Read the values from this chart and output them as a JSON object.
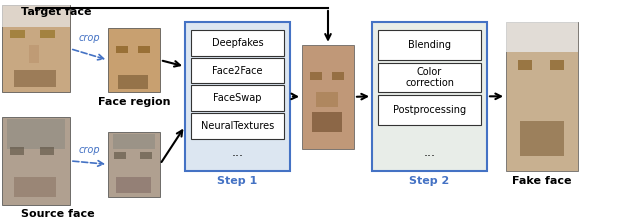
{
  "title": "",
  "background_color": "#ffffff",
  "step1_box": {
    "methods": [
      "Deepfakes",
      "Face2Face",
      "FaceSwap",
      "NeuralTextures"
    ],
    "label": "Step 1",
    "border_color": "#4472c4",
    "fill_color": "#dce6f1"
  },
  "step2_box": {
    "methods": [
      "Blending",
      "Color\ncorrection",
      "Postprocessing"
    ],
    "label": "Step 2",
    "border_color": "#4472c4",
    "fill_color": "#e8ede8"
  },
  "labels": {
    "target_face": "Target face",
    "source_face": "Source face",
    "face_region": "Face region",
    "fake_face": "Fake face",
    "crop": "crop"
  },
  "arrow_color": "#000000",
  "crop_arrow_color": "#4472c4",
  "label_fontsize": 8,
  "method_fontsize": 7,
  "step_label_color": "#4472c4"
}
